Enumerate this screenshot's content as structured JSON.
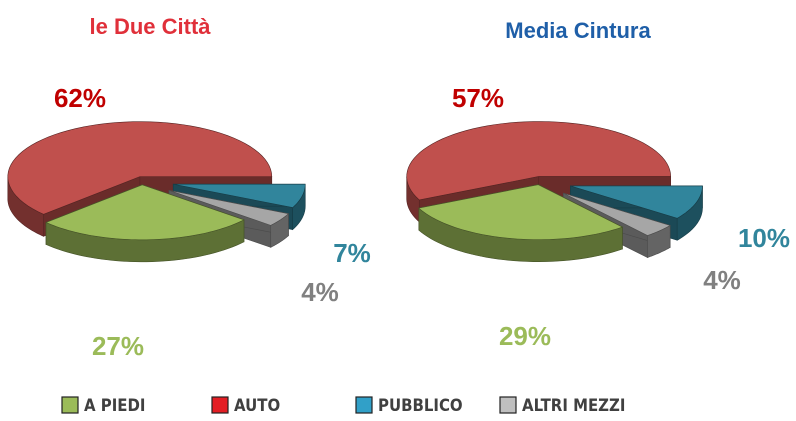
{
  "chart_data": [
    {
      "type": "pie",
      "title": "le Due Città",
      "title_color": "#e0303a",
      "categories": [
        "A PIEDI",
        "AUTO",
        "PUBBLICO",
        "ALTRI MEZZI"
      ],
      "values": [
        27,
        62,
        7,
        4
      ],
      "value_labels": [
        "27%",
        "62%",
        "7%",
        "4%"
      ],
      "colors": [
        "#9bbb59",
        "#c0504d",
        "#31859c",
        "#a6a6a6"
      ],
      "label_colors": [
        "#9bbb59",
        "#c00000",
        "#31859c",
        "#808080"
      ]
    },
    {
      "type": "pie",
      "title": "Media Cintura",
      "title_color": "#1f5fa8",
      "categories": [
        "A PIEDI",
        "AUTO",
        "PUBBLICO",
        "ALTRI MEZZI"
      ],
      "values": [
        29,
        57,
        10,
        4
      ],
      "value_labels": [
        "29%",
        "57%",
        "10%",
        "4%"
      ],
      "colors": [
        "#9bbb59",
        "#c0504d",
        "#31859c",
        "#a6a6a6"
      ],
      "label_colors": [
        "#9bbb59",
        "#c00000",
        "#31859c",
        "#808080"
      ]
    }
  ],
  "legend_colors": [
    "#9bbb59",
    "#e31e24",
    "#31a0c8",
    "#bfbfbf"
  ]
}
